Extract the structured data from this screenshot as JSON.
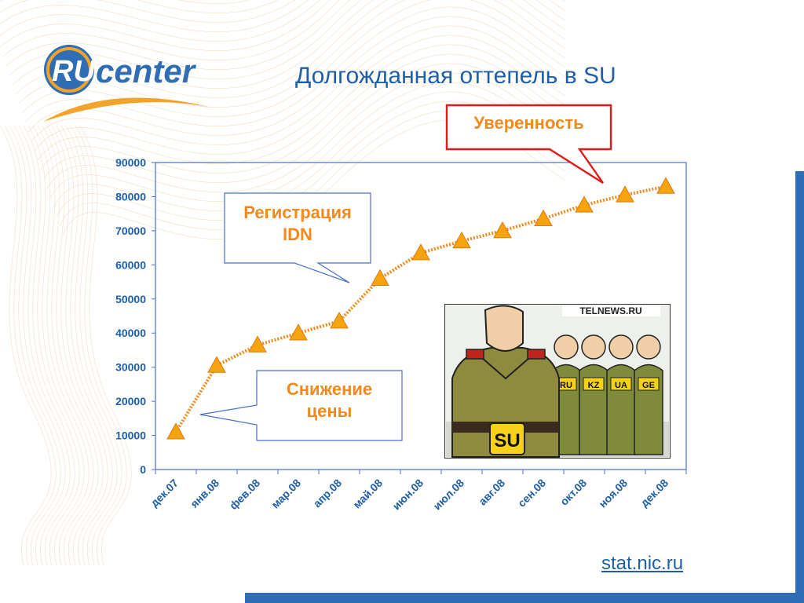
{
  "slide": {
    "title": "Долгожданная оттепель в SU",
    "logo": {
      "ru": "RU",
      "word": "center"
    },
    "source_link": "stat.nic.ru",
    "colors": {
      "title": "#1f5fa8",
      "accent": "#f08a1c",
      "line": "#f08a1c",
      "marker": "#f5a30f",
      "frame_blue": "#4a6fd0",
      "callout_red": "#e01b1b"
    }
  },
  "callouts": {
    "confidence": "Уверенность",
    "idn_line1": "Регистрация",
    "idn_line2": "IDN",
    "price_line1": "Снижение",
    "price_line2": "цены"
  },
  "cartoon": {
    "header": "TELNEWS.RU",
    "badges": [
      "SU",
      "RU",
      "KZ",
      "UA",
      "GE"
    ]
  },
  "chart_data": {
    "type": "line",
    "categories": [
      "дек.07",
      "янв.08",
      "фев.08",
      "мар.08",
      "апр.08",
      "май.08",
      "июн.08",
      "июл.08",
      "авг.08",
      "сен.08",
      "окт.08",
      "ноя.08",
      "дек.08"
    ],
    "series": [
      {
        "values": [
          11000,
          30500,
          36500,
          40000,
          43500,
          56000,
          63500,
          67000,
          70000,
          73500,
          77500,
          80500,
          83000
        ]
      }
    ],
    "ylim": [
      0,
      90000
    ],
    "yticks": [
      0,
      10000,
      20000,
      30000,
      40000,
      50000,
      60000,
      70000,
      80000,
      90000
    ],
    "marker": "triangle",
    "grid": false,
    "legend": "none"
  }
}
